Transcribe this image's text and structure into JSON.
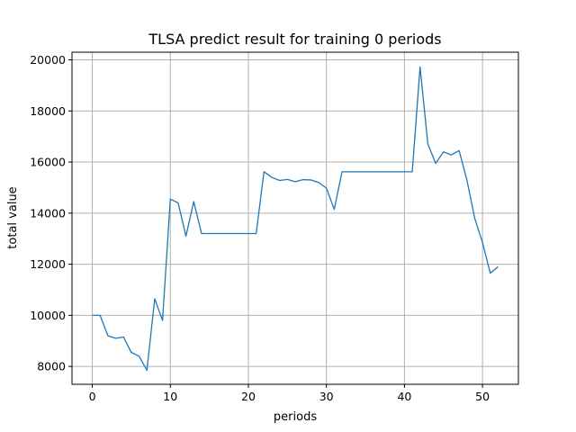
{
  "chart_data": {
    "type": "line",
    "title": "TLSA predict result for training 0 periods",
    "xlabel": "periods",
    "ylabel": "total value",
    "xlim": [
      -2.6,
      54.6
    ],
    "ylim": [
      7300,
      20300
    ],
    "xticks": [
      0,
      10,
      20,
      30,
      40,
      50
    ],
    "yticks": [
      8000,
      10000,
      12000,
      14000,
      16000,
      18000,
      20000
    ],
    "grid": true,
    "color": "#1f77b4",
    "x": [
      0,
      1,
      2,
      3,
      4,
      5,
      6,
      7,
      8,
      9,
      10,
      11,
      12,
      13,
      14,
      15,
      16,
      17,
      18,
      19,
      20,
      21,
      22,
      23,
      24,
      25,
      26,
      27,
      28,
      29,
      30,
      31,
      32,
      33,
      34,
      35,
      36,
      37,
      38,
      39,
      40,
      41,
      42,
      43,
      44,
      45,
      46,
      47,
      48,
      49,
      50,
      51,
      52
    ],
    "series": [
      {
        "values": [
          10000,
          10000,
          9200,
          9100,
          9150,
          8550,
          8400,
          7850,
          10650,
          9800,
          14550,
          14400,
          13100,
          14450,
          13200,
          13200,
          13200,
          13200,
          13200,
          13200,
          13200,
          13200,
          15620,
          15400,
          15280,
          15320,
          15230,
          15310,
          15300,
          15200,
          14980,
          14150,
          15620,
          15620,
          15620,
          15620,
          15620,
          15620,
          15620,
          15620,
          15620,
          15620,
          19720,
          16700,
          15950,
          16400,
          16280,
          16450,
          15300,
          13800,
          12850,
          11650,
          11900
        ]
      }
    ]
  }
}
